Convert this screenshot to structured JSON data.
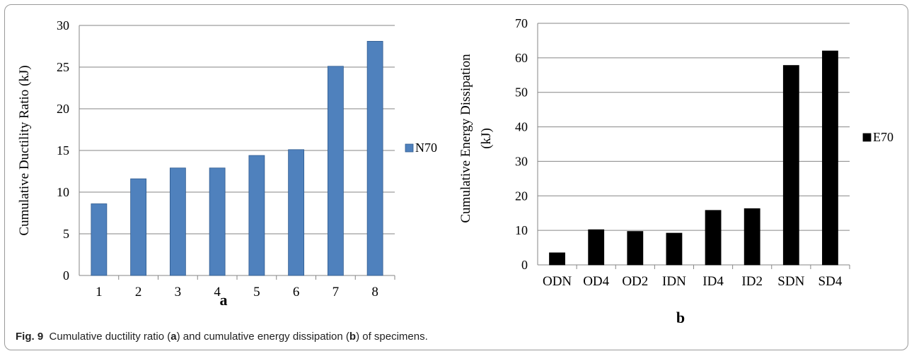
{
  "chart_data": [
    {
      "type": "bar",
      "panel_label": "a",
      "categories": [
        "1",
        "2",
        "3",
        "4",
        "5",
        "6",
        "7",
        "8"
      ],
      "series": [
        {
          "name": "N70",
          "values": [
            8.6,
            11.6,
            12.9,
            12.9,
            14.4,
            15.1,
            25.1,
            28.1
          ]
        }
      ],
      "ylabel": "Cumulative Ductility Ratio (kJ)",
      "xlabel": "",
      "ylim": [
        0,
        30
      ],
      "yticks": [
        0,
        5,
        10,
        15,
        20,
        25,
        30
      ],
      "grid": true,
      "legend": "right",
      "color": "#4f81bd"
    },
    {
      "type": "bar",
      "panel_label": "b",
      "categories": [
        "ODN",
        "OD4",
        "OD2",
        "IDN",
        "ID4",
        "ID2",
        "SDN",
        "SD4"
      ],
      "series": [
        {
          "name": "E70",
          "values": [
            3.5,
            10.2,
            9.7,
            9.2,
            15.8,
            16.3,
            57.8,
            62.0
          ]
        }
      ],
      "ylabel_lines": [
        "Cumulative Energy Dissipation",
        "(kJ)"
      ],
      "xlabel": "",
      "ylim": [
        0,
        70
      ],
      "yticks": [
        0,
        10,
        20,
        30,
        40,
        50,
        60,
        70
      ],
      "grid": true,
      "legend": "right",
      "color": "#000000"
    }
  ],
  "caption": {
    "fig_label": "Fig. 9",
    "part1": "Cumulative ductility ratio (",
    "a": "a",
    "part2": ") and cumulative energy dissipation (",
    "b": "b",
    "part3": ") of specimens."
  }
}
